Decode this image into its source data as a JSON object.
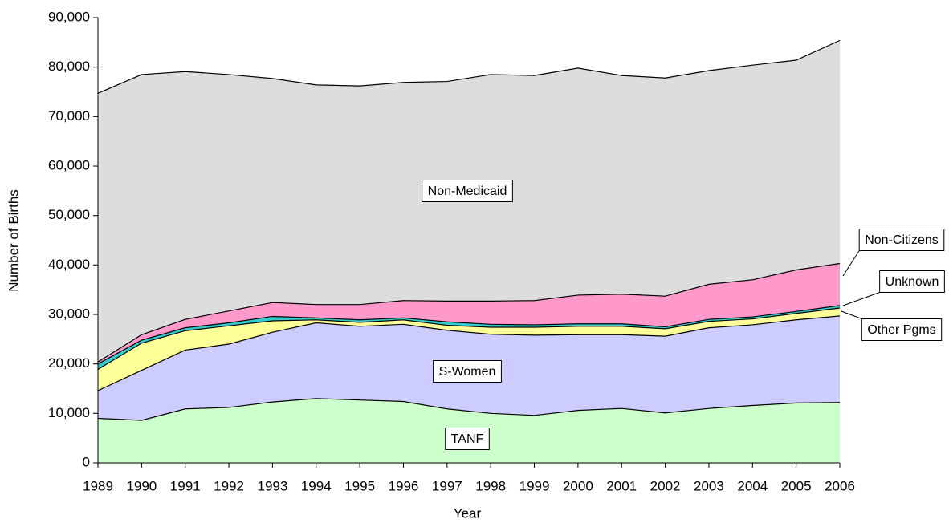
{
  "chart_data": {
    "type": "stacked_area",
    "x_label": "Year",
    "y_label": "Number of Births",
    "x": [
      1989,
      1990,
      1991,
      1992,
      1993,
      1994,
      1995,
      1996,
      1997,
      1998,
      1999,
      2000,
      2001,
      2002,
      2003,
      2004,
      2005,
      2006
    ],
    "xlim": [
      1989,
      2006
    ],
    "xticks": [
      1989,
      1990,
      1991,
      1992,
      1993,
      1994,
      1995,
      1996,
      1997,
      1998,
      1999,
      2000,
      2001,
      2002,
      2003,
      2004,
      2005,
      2006
    ],
    "ylim": [
      0,
      90000
    ],
    "yticks": [
      0,
      {
        "value": 10000,
        "label": "10,000"
      },
      {
        "value": 20000,
        "label": "20,000"
      },
      {
        "value": 30000,
        "label": "30,000"
      },
      {
        "value": 40000,
        "label": "40,000"
      },
      {
        "value": 50000,
        "label": "50,000"
      },
      {
        "value": 60000,
        "label": "60,000"
      },
      {
        "value": 70000,
        "label": "70,000"
      },
      {
        "value": 80000,
        "label": "80,000"
      },
      {
        "value": 90000,
        "label": "90,000"
      }
    ],
    "grid": false,
    "series": [
      {
        "name": "TANF",
        "color": "#ccffcc",
        "values": [
          9000,
          8600,
          10900,
          11200,
          12300,
          13000,
          12700,
          12400,
          10900,
          10000,
          9600,
          10600,
          11000,
          10100,
          11000,
          11600,
          12100,
          12200
        ]
      },
      {
        "name": "S-Women",
        "color": "#ccccff",
        "values": [
          5600,
          10100,
          11900,
          12800,
          14100,
          15300,
          14900,
          15600,
          15900,
          16000,
          16200,
          15300,
          14900,
          15500,
          16300,
          16300,
          16800,
          17500
        ]
      },
      {
        "name": "Other Pgms",
        "color": "#ffff99",
        "values": [
          4300,
          5500,
          3900,
          3700,
          2300,
          600,
          800,
          900,
          1000,
          1400,
          1600,
          1700,
          1700,
          1500,
          1300,
          1200,
          1300,
          1600
        ]
      },
      {
        "name": "Unknown",
        "color": "#33cccc",
        "values": [
          1100,
          600,
          600,
          600,
          900,
          400,
          500,
          400,
          700,
          600,
          500,
          500,
          500,
          400,
          400,
          400,
          400,
          500
        ]
      },
      {
        "name": "Non-Citizens",
        "color": "#ff99cc",
        "values": [
          400,
          1100,
          1700,
          2400,
          2800,
          2700,
          3100,
          3500,
          4200,
          4700,
          4900,
          5800,
          6000,
          6200,
          7100,
          7500,
          8400,
          8500
        ]
      },
      {
        "name": "Non-Medicaid",
        "color": "#dddddd",
        "values": [
          54300,
          52600,
          50100,
          47800,
          45300,
          44400,
          44200,
          44100,
          44400,
          45800,
          45500,
          45900,
          44200,
          44100,
          43200,
          43400,
          42400,
          45100
        ]
      }
    ]
  }
}
